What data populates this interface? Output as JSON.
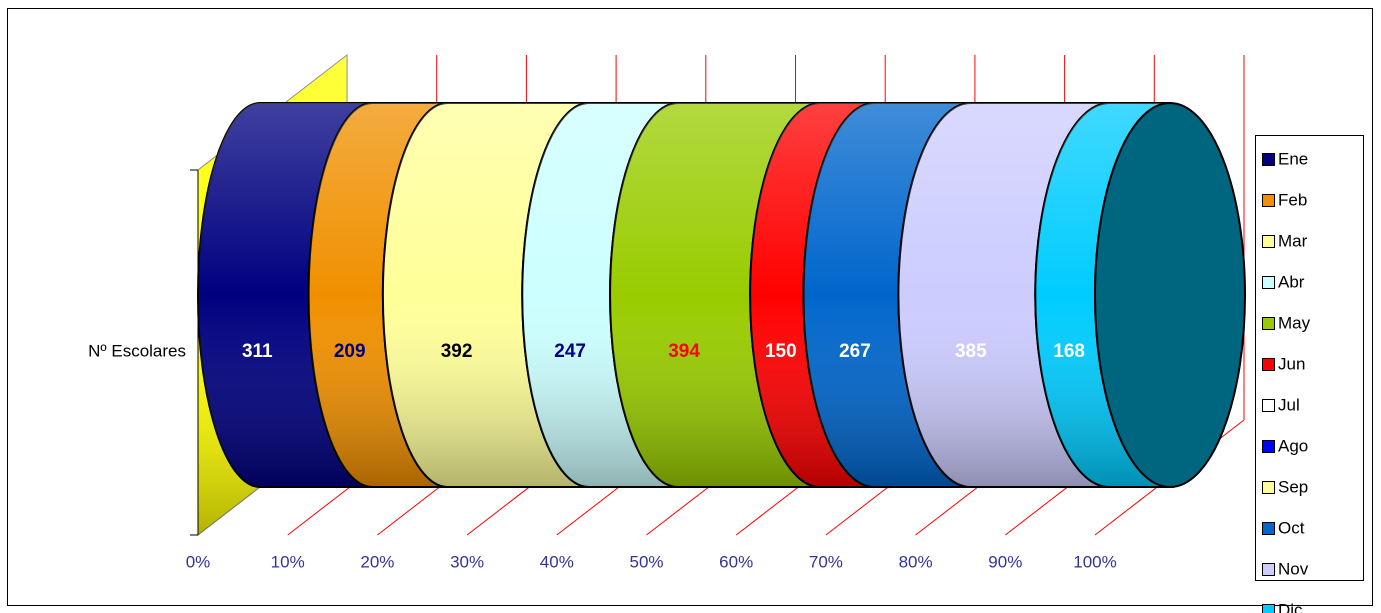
{
  "chart_data": {
    "type": "bar3d_stacked100",
    "categories": [
      "Nº Escolares"
    ],
    "series": [
      {
        "name": "Ene",
        "color": "#000080",
        "label_color": "#ffffff",
        "values": [
          311
        ]
      },
      {
        "name": "Feb",
        "color": "#f09000",
        "label_color": "#000080",
        "values": [
          209
        ]
      },
      {
        "name": "Mar",
        "color": "#ffff99",
        "label_color": "#000000",
        "values": [
          392
        ]
      },
      {
        "name": "Abr",
        "color": "#ccffff",
        "label_color": "#000080",
        "values": [
          247
        ]
      },
      {
        "name": "May",
        "color": "#99cc00",
        "label_color": "#ff0000",
        "values": [
          394
        ]
      },
      {
        "name": "Jun",
        "color": "#ff0000",
        "label_color": "#ffffff",
        "values": [
          150
        ]
      },
      {
        "name": "Jul",
        "color": "#ffffff",
        "label_color": "#000000",
        "values": [
          null
        ]
      },
      {
        "name": "Ago",
        "color": "#0000ff",
        "label_color": "#ffffff",
        "values": [
          null
        ]
      },
      {
        "name": "Sep",
        "color": "#ffff99",
        "label_color": "#000000",
        "values": [
          null
        ]
      },
      {
        "name": "Oct",
        "color": "#0066cc",
        "label_color": "#ffffff",
        "values": [
          267
        ]
      },
      {
        "name": "Nov",
        "color": "#ccccff",
        "label_color": "#ffffff",
        "values": [
          385
        ]
      },
      {
        "name": "Dic",
        "color": "#00ccff",
        "label_color": "#ffffff",
        "values": [
          168
        ]
      }
    ],
    "xlim": [
      0,
      100
    ],
    "xticks": [
      {
        "value": 0,
        "label": "0%"
      },
      {
        "value": 10,
        "label": "10%"
      },
      {
        "value": 20,
        "label": "20%"
      },
      {
        "value": 30,
        "label": "30%"
      },
      {
        "value": 40,
        "label": "40%"
      },
      {
        "value": 50,
        "label": "50%"
      },
      {
        "value": 60,
        "label": "60%"
      },
      {
        "value": 70,
        "label": "70%"
      },
      {
        "value": 80,
        "label": "80%"
      },
      {
        "value": 90,
        "label": "90%"
      },
      {
        "value": 100,
        "label": "100%"
      }
    ],
    "grid": true,
    "legend": "right"
  }
}
